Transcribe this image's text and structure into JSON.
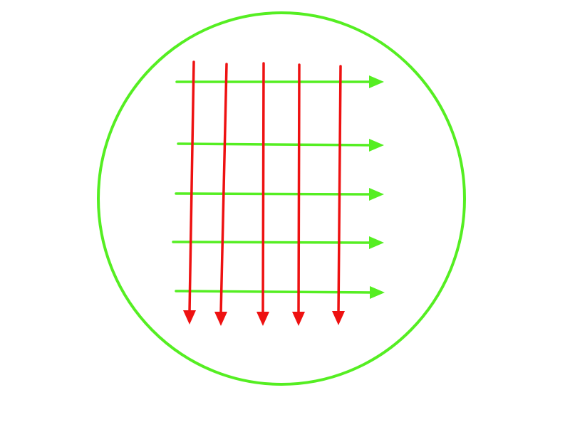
{
  "diagram": {
    "background_color": "#ffffff",
    "circle": {
      "shape": "circle",
      "stroke_color": "#55ee22"
    },
    "horizontal_arrows": {
      "direction": "right",
      "count": 5,
      "stroke_color": "#55ee22"
    },
    "vertical_arrows": {
      "direction": "down",
      "count": 5,
      "stroke_color": "#ee1111"
    }
  }
}
